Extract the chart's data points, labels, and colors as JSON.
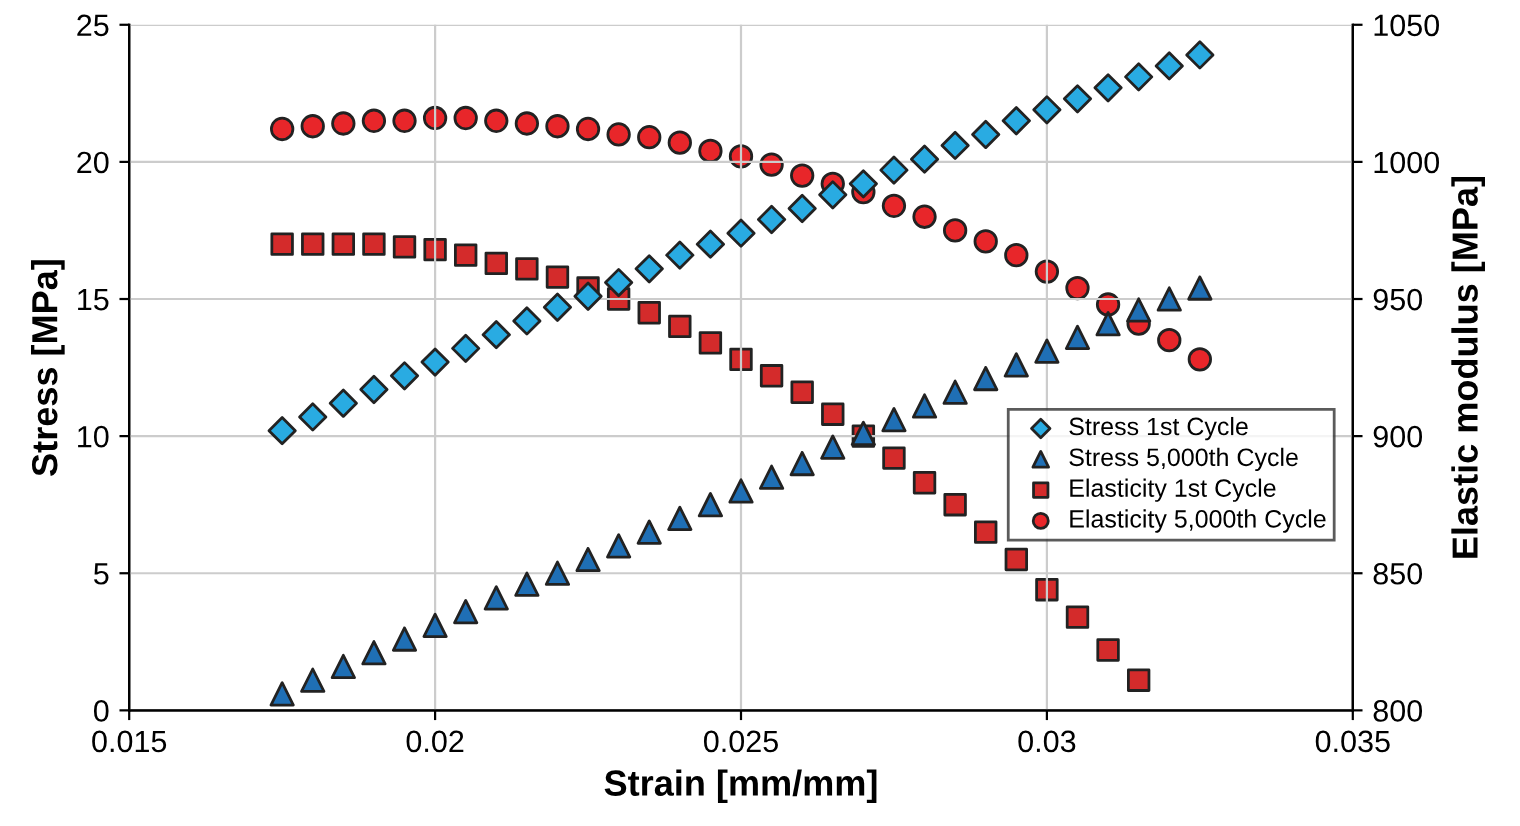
{
  "chart_data": {
    "type": "scatter",
    "xlabel": "Strain [mm/mm]",
    "ylabel": "Stress [MPa]",
    "y2label": "Elastic modulus [MPa]",
    "xlim": [
      0.015,
      0.035
    ],
    "xticks": [
      0.015,
      0.02,
      0.025,
      0.03,
      0.035
    ],
    "ylim": [
      0,
      25
    ],
    "yticks": [
      0,
      5,
      10,
      15,
      20,
      25
    ],
    "y2lim": [
      800,
      1050
    ],
    "y2ticks": [
      800,
      850,
      900,
      950,
      1000,
      1050
    ],
    "grid": true,
    "legend": "bottom right",
    "x": [
      0.0175,
      0.018,
      0.0185,
      0.019,
      0.0195,
      0.02,
      0.0205,
      0.021,
      0.0215,
      0.022,
      0.0225,
      0.023,
      0.0235,
      0.024,
      0.0245,
      0.025,
      0.0255,
      0.026,
      0.0265,
      0.027,
      0.0275,
      0.028,
      0.0285,
      0.029,
      0.0295,
      0.03,
      0.0305,
      0.031,
      0.0315,
      0.032,
      0.0325
    ],
    "series": [
      {
        "name": "Stress 1st Cycle",
        "color": "#29abe2",
        "marker": "diamond",
        "values": [
          10.2,
          10.7,
          11.2,
          11.7,
          12.2,
          12.7,
          13.2,
          13.7,
          14.2,
          14.7,
          15.1,
          15.6,
          16.1,
          16.6,
          17.0,
          17.4,
          17.9,
          18.3,
          18.8,
          19.2,
          19.7,
          20.1,
          20.6,
          21.0,
          21.5,
          21.9,
          22.3,
          22.7,
          23.1,
          23.5,
          23.9
        ]
      },
      {
        "name": "Stress 5,000th Cycle",
        "color": "#1f6fb5",
        "marker": "triangle",
        "values": [
          0.6,
          1.1,
          1.6,
          2.1,
          2.6,
          3.1,
          3.6,
          4.1,
          4.6,
          5.0,
          5.5,
          6.0,
          6.5,
          7.0,
          7.5,
          8.0,
          8.5,
          9.0,
          9.6,
          10.1,
          10.6,
          11.1,
          11.6,
          12.1,
          12.6,
          13.1,
          13.6,
          14.1,
          14.6,
          15.0,
          15.4
        ]
      },
      {
        "name": "Elasticity 1st Cycle",
        "color": "#d42b2b",
        "marker": "square",
        "axis": "y2",
        "values": [
          970,
          970,
          970,
          970,
          969,
          968,
          966,
          963,
          961,
          958,
          954,
          950,
          945,
          940,
          934,
          928,
          922,
          916,
          908,
          900,
          892,
          883,
          875,
          865,
          855,
          844,
          834,
          822,
          811,
          null,
          null
        ]
      },
      {
        "name": "Elasticity 5,000th Cycle",
        "color": "#e8262a",
        "marker": "circle",
        "axis": "y2",
        "values": [
          1012,
          1013,
          1014,
          1015,
          1015,
          1016,
          1016,
          1015,
          1014,
          1013,
          1012,
          1010,
          1009,
          1007,
          1004,
          1002,
          999,
          995,
          992,
          989,
          984,
          980,
          975,
          971,
          966,
          960,
          954,
          948,
          941,
          935,
          928
        ]
      }
    ]
  }
}
